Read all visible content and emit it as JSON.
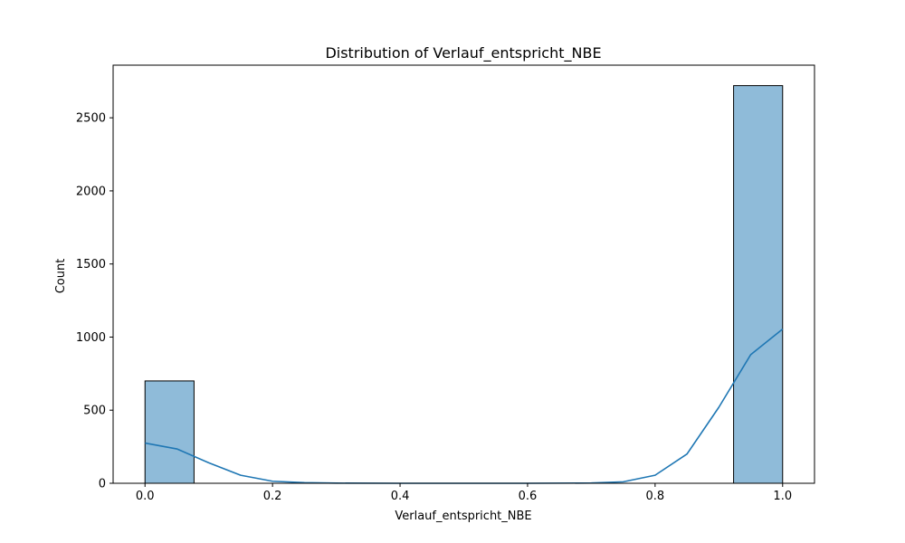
{
  "chart_data": {
    "type": "bar",
    "subtype": "histogram",
    "title": "Distribution of Verlauf_entspricht_NBE",
    "xlabel": "Verlauf_entspricht_NBE",
    "ylabel": "Count",
    "xlim": [
      -0.05,
      1.05
    ],
    "ylim": [
      0,
      2860
    ],
    "xticks": [
      0.0,
      0.2,
      0.4,
      0.6,
      0.8,
      1.0
    ],
    "xtick_labels": [
      "0.0",
      "0.2",
      "0.4",
      "0.6",
      "0.8",
      "1.0"
    ],
    "yticks": [
      0,
      500,
      1000,
      1500,
      2000,
      2500
    ],
    "ytick_labels": [
      "0",
      "500",
      "1000",
      "1500",
      "2000",
      "2500"
    ],
    "bins": [
      {
        "x0": 0.0,
        "x1": 0.0769,
        "count": 700
      },
      {
        "x0": 0.9231,
        "x1": 1.0,
        "count": 2720
      }
    ],
    "kde": {
      "x": [
        0.0,
        0.05,
        0.1,
        0.15,
        0.2,
        0.25,
        0.3,
        0.4,
        0.5,
        0.6,
        0.7,
        0.75,
        0.8,
        0.85,
        0.9,
        0.95,
        1.0
      ],
      "y": [
        275,
        235,
        140,
        55,
        14,
        4,
        1,
        0,
        0,
        0,
        2,
        10,
        55,
        200,
        520,
        880,
        1055
      ]
    },
    "grid": false,
    "colors": {
      "bar_fill": "#8fbbd9",
      "bar_edge": "#000000",
      "kde_line": "#1f77b4"
    }
  }
}
